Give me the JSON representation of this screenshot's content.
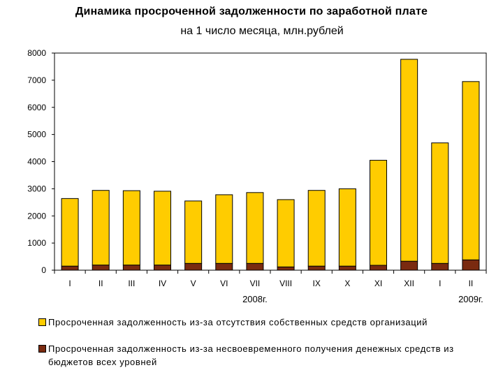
{
  "chart_data": {
    "type": "bar",
    "stacked": true,
    "title": "Динамика просроченной задолженности по заработной плате",
    "subtitle": "на 1 число месяца, млн.рублей",
    "categories": [
      "I",
      "II",
      "III",
      "IV",
      "V",
      "VI",
      "VII",
      "VIII",
      "IX",
      "X",
      "XI",
      "XII",
      "I",
      "II"
    ],
    "year_labels": [
      {
        "text": "2008г.",
        "category_index": 6
      },
      {
        "text": "2009г.",
        "category_index": 13
      }
    ],
    "series": [
      {
        "name": "Просроченная задолженность из-за несвоевременного получения денежных средств из бюджетов всех уровней",
        "color": "#7a2a10",
        "values": [
          150,
          190,
          190,
          190,
          250,
          250,
          250,
          120,
          150,
          150,
          180,
          330,
          250,
          380
        ]
      },
      {
        "name": "Просроченная задолженность из-за отсутствия собственных средств организаций",
        "color": "#ffcc00",
        "values": [
          2490,
          2750,
          2740,
          2720,
          2300,
          2530,
          2610,
          2480,
          2790,
          2850,
          3870,
          7440,
          4440,
          6570
        ]
      }
    ],
    "ylim": [
      0,
      8000
    ],
    "yticks": [
      0,
      1000,
      2000,
      3000,
      4000,
      5000,
      6000,
      7000,
      8000
    ],
    "grid": false,
    "legend_position": "bottom"
  }
}
